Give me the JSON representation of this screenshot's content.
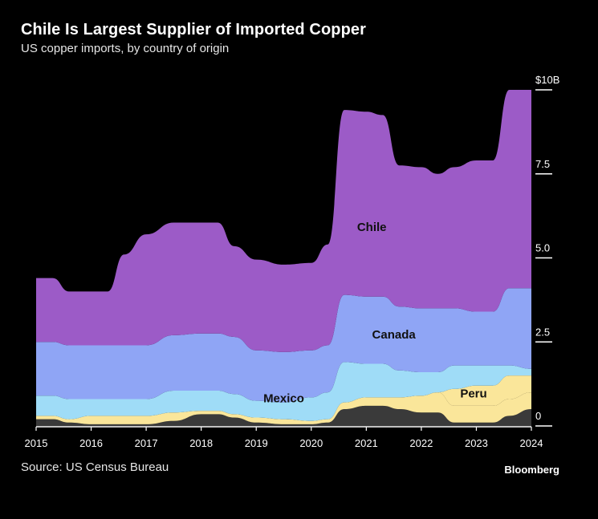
{
  "header": {
    "title": "Chile Is Largest Supplier of Imported Copper",
    "subtitle": "US copper imports, by country of origin"
  },
  "footer": {
    "source": "Source: US Census Bureau",
    "brand": "Bloomberg"
  },
  "chart_data": {
    "type": "area",
    "stacked": true,
    "title": "Chile Is Largest Supplier of Imported Copper",
    "subtitle": "US copper imports, by country of origin",
    "x": [
      2015,
      2015.3,
      2015.6,
      2016,
      2016.3,
      2016.6,
      2017,
      2017.5,
      2018,
      2018.3,
      2018.6,
      2019,
      2019.5,
      2020,
      2020.3,
      2020.6,
      2021,
      2021.3,
      2021.6,
      2022,
      2022.3,
      2022.6,
      2023,
      2023.3,
      2023.6,
      2024
    ],
    "xlim": [
      2015,
      2024
    ],
    "x_ticks": [
      "2015",
      "2016",
      "2017",
      "2018",
      "2019",
      "2020",
      "2021",
      "2022",
      "2023",
      "2024"
    ],
    "ylim": [
      0,
      10
    ],
    "y_ticks": [
      {
        "value": 0,
        "label": "0"
      },
      {
        "value": 2.5,
        "label": "2.5"
      },
      {
        "value": 5,
        "label": "5.0"
      },
      {
        "value": 7.5,
        "label": "7.5"
      },
      {
        "value": 10,
        "label": "$10B"
      }
    ],
    "series": [
      {
        "name": "",
        "color": "#3a3a3a",
        "values": [
          0.2,
          0.2,
          0.1,
          0.05,
          0.05,
          0.05,
          0.05,
          0.15,
          0.35,
          0.35,
          0.25,
          0.1,
          0.05,
          0.05,
          0.1,
          0.5,
          0.6,
          0.6,
          0.5,
          0.4,
          0.4,
          0.1,
          0.1,
          0.1,
          0.3,
          0.5
        ]
      },
      {
        "name": "",
        "color": "#fae69a",
        "values": [
          0.1,
          0.1,
          0.1,
          0.25,
          0.25,
          0.25,
          0.25,
          0.25,
          0.1,
          0.1,
          0.1,
          0.15,
          0.15,
          0.1,
          0.1,
          0.2,
          0.25,
          0.25,
          0.35,
          0.5,
          0.6,
          0.5,
          0.5,
          0.5,
          0.5,
          0.5
        ]
      },
      {
        "name": "",
        "color": "#fae69a",
        "values": [
          0,
          0,
          0,
          0,
          0,
          0,
          0,
          0,
          0,
          0,
          0,
          0,
          0,
          0,
          0,
          0,
          0,
          0,
          0,
          0,
          0,
          0.5,
          0.6,
          0.6,
          0.7,
          0.5
        ]
      },
      {
        "name": "Mexico",
        "color": "#9fdcf7",
        "values": [
          0.6,
          0.6,
          0.6,
          0.5,
          0.5,
          0.5,
          0.5,
          0.65,
          0.6,
          0.6,
          0.6,
          0.5,
          0.5,
          0.7,
          0.8,
          1.2,
          1.0,
          1.0,
          0.8,
          0.7,
          0.6,
          0.7,
          0.6,
          0.6,
          0.3,
          0.2
        ]
      },
      {
        "name": "Canada",
        "color": "#8fa5f5",
        "values": [
          1.6,
          1.6,
          1.6,
          1.6,
          1.6,
          1.6,
          1.6,
          1.65,
          1.7,
          1.7,
          1.7,
          1.5,
          1.5,
          1.4,
          1.4,
          2.0,
          2.0,
          2.0,
          1.9,
          1.9,
          1.9,
          1.7,
          1.6,
          1.6,
          2.3,
          2.4
        ]
      },
      {
        "name": "Chile",
        "color": "#9c5bc7",
        "values": [
          1.9,
          1.9,
          1.6,
          1.6,
          1.6,
          2.7,
          3.3,
          3.35,
          3.3,
          3.3,
          2.7,
          2.7,
          2.6,
          2.6,
          3.0,
          5.5,
          5.5,
          5.4,
          4.2,
          4.2,
          4.0,
          4.2,
          4.5,
          4.5,
          5.9,
          5.9
        ]
      }
    ],
    "labels": [
      {
        "text": "Chile",
        "x": 2021.1,
        "y": 5.8,
        "color": "#111111"
      },
      {
        "text": "Canada",
        "x": 2021.5,
        "y": 2.6,
        "color": "#111111"
      },
      {
        "text": "Mexico",
        "x": 2019.5,
        "y": 0.7,
        "color": "#111111"
      },
      {
        "text": "Peru",
        "x": 2022.95,
        "y": 0.85,
        "color": "#111111"
      }
    ],
    "legend": "none",
    "grid": false
  }
}
